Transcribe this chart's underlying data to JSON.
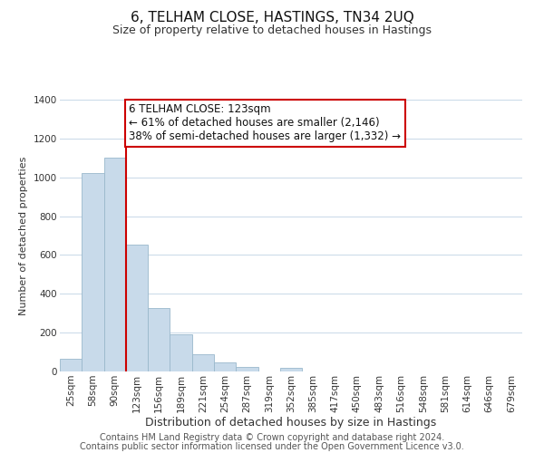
{
  "title": "6, TELHAM CLOSE, HASTINGS, TN34 2UQ",
  "subtitle": "Size of property relative to detached houses in Hastings",
  "xlabel": "Distribution of detached houses by size in Hastings",
  "ylabel": "Number of detached properties",
  "bar_labels": [
    "25sqm",
    "58sqm",
    "90sqm",
    "123sqm",
    "156sqm",
    "189sqm",
    "221sqm",
    "254sqm",
    "287sqm",
    "319sqm",
    "352sqm",
    "385sqm",
    "417sqm",
    "450sqm",
    "483sqm",
    "516sqm",
    "548sqm",
    "581sqm",
    "614sqm",
    "646sqm",
    "679sqm"
  ],
  "bar_values": [
    65,
    1020,
    1100,
    655,
    328,
    193,
    88,
    48,
    22,
    0,
    18,
    0,
    0,
    0,
    0,
    0,
    0,
    0,
    0,
    0,
    0
  ],
  "bar_color": "#c8daea",
  "bar_edgecolor": "#9ab8cc",
  "vline_x": 2.5,
  "vline_color": "#cc0000",
  "annotation_line1": "6 TELHAM CLOSE: 123sqm",
  "annotation_line2": "← 61% of detached houses are smaller (2,146)",
  "annotation_line3": "38% of semi-detached houses are larger (1,332) →",
  "annotation_box_edgecolor": "#cc0000",
  "annotation_fontsize": 8.5,
  "ylim": [
    0,
    1400
  ],
  "yticks": [
    0,
    200,
    400,
    600,
    800,
    1000,
    1200,
    1400
  ],
  "footer_line1": "Contains HM Land Registry data © Crown copyright and database right 2024.",
  "footer_line2": "Contains public sector information licensed under the Open Government Licence v3.0.",
  "background_color": "#ffffff",
  "grid_color": "#c8d8e8",
  "title_fontsize": 11,
  "subtitle_fontsize": 9,
  "xlabel_fontsize": 9,
  "ylabel_fontsize": 8,
  "tick_fontsize": 7.5,
  "footer_fontsize": 7
}
